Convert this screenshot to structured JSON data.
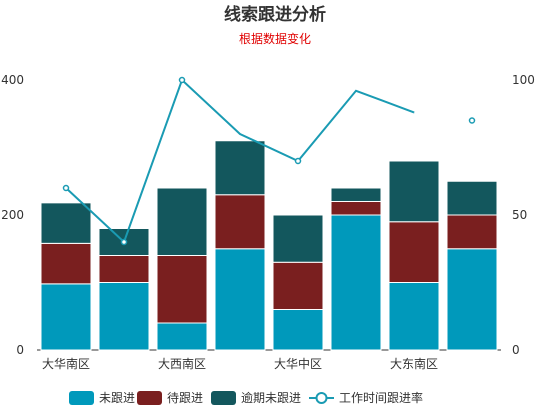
{
  "chart_data": {
    "type": "bar",
    "stacked": true,
    "title": "线索跟进分析",
    "subtitle": "根据数据变化",
    "categories": [
      "大华南区",
      "",
      "大西南区",
      "",
      "大华中区",
      "",
      "大东南区",
      ""
    ],
    "series": [
      {
        "name": "未跟进",
        "type": "bar",
        "axis": "left",
        "color": "#0099bb",
        "values": [
          98,
          100,
          40,
          150,
          60,
          200,
          100,
          150
        ]
      },
      {
        "name": "待跟进",
        "type": "bar",
        "axis": "left",
        "color": "#7a1f1f",
        "values": [
          60,
          40,
          100,
          80,
          70,
          20,
          90,
          50
        ]
      },
      {
        "name": "逾期未跟进",
        "type": "bar",
        "axis": "left",
        "color": "#13575d",
        "values": [
          60,
          40,
          100,
          80,
          70,
          20,
          90,
          50
        ]
      },
      {
        "name": "工作时间跟进率",
        "type": "line",
        "axis": "right",
        "color": "#1a9bb3",
        "values": [
          60,
          40,
          100,
          80,
          70,
          96,
          88,
          85
        ]
      }
    ],
    "y_left": {
      "min": 0,
      "max": 400,
      "ticks": [
        0,
        200,
        400
      ]
    },
    "y_right": {
      "min": 0,
      "max": 100,
      "ticks": [
        0,
        50,
        100
      ]
    },
    "legend_position": "bottom",
    "grid": false
  }
}
